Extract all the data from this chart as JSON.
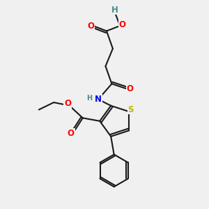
{
  "bg_color": "#f0f0f0",
  "bond_color": "#1a1a1a",
  "bond_width": 1.5,
  "atom_colors": {
    "O": "#ff0000",
    "N": "#0000ee",
    "S": "#bbbb00",
    "H_gray": "#4a8a8a",
    "C": "#1a1a1a"
  },
  "font_size_atom": 8.5,
  "font_size_small": 7.0,
  "figsize": [
    3.0,
    3.0
  ],
  "dpi": 100
}
